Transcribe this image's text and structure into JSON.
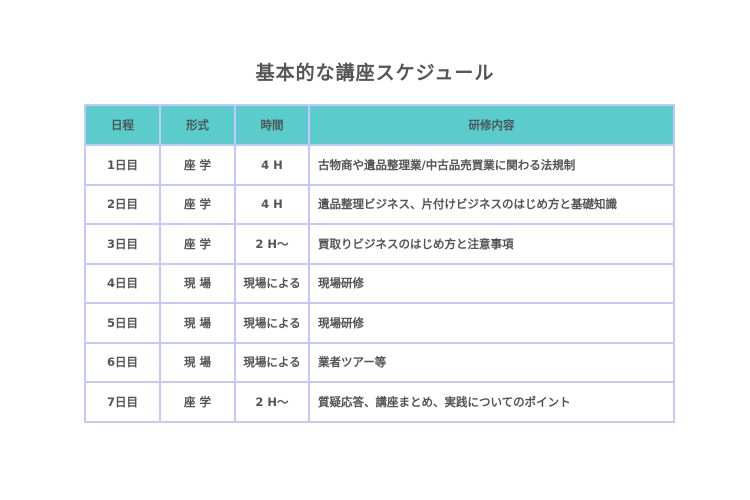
{
  "title": "基本的な講座スケジュール",
  "table": {
    "headers": [
      "日程",
      "形式",
      "時間",
      "研修内容"
    ],
    "rows": [
      [
        "1日目",
        "座 学",
        "4 H",
        "古物商や遺品整理業/中古品売買業に関わる法規制"
      ],
      [
        "2日目",
        "座 学",
        "4 H",
        "遺品整理ビジネス、片付けビジネスのはじめ方と基礎知識"
      ],
      [
        "3日目",
        "座 学",
        "2 H～",
        "買取りビジネスのはじめ方と注意事項"
      ],
      [
        "4日目",
        "現 場",
        "現場による",
        "現場研修"
      ],
      [
        "5日目",
        "現 場",
        "現場による",
        "現場研修"
      ],
      [
        "6日目",
        "現 場",
        "現場による",
        "業者ツアー等"
      ],
      [
        "7日目",
        "座 学",
        "2 H～",
        "質疑応答、講座まとめ、実践についてのポイント"
      ]
    ]
  },
  "colors": {
    "header_bg": "#5bcbcb",
    "border": "#c4c9fb"
  }
}
